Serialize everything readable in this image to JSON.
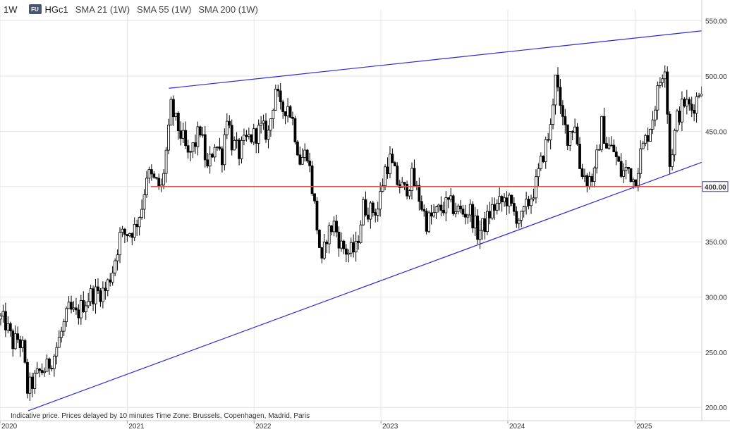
{
  "header": {
    "timeframe": "1W",
    "badge": "FU",
    "symbol": "HGc1",
    "indicators": [
      "SMA 21 (1W)",
      "SMA 55 (1W)",
      "SMA 200 (1W)"
    ]
  },
  "chart_data": {
    "type": "candlestick",
    "symbol": "HGc1",
    "interval": "1W",
    "y_ticks": [
      200,
      250,
      300,
      350,
      400,
      450,
      500,
      550
    ],
    "y_tick_labels": [
      "200.00",
      "250.00",
      "300.00",
      "350.00",
      "400.00",
      "450.00",
      "500.00",
      "550.00"
    ],
    "ylim": [
      188,
      560
    ],
    "x_start": "2020-01-01",
    "x_end": "2025-07-12",
    "x_ticks": [
      {
        "date": "2020-01-01",
        "label": "2020"
      },
      {
        "date": "2021-01-01",
        "label": "2021"
      },
      {
        "date": "2022-01-01",
        "label": "2022"
      },
      {
        "date": "2023-01-01",
        "label": "2023"
      },
      {
        "date": "2024-01-01",
        "label": "2024"
      },
      {
        "date": "2025-01-01",
        "label": "2025"
      }
    ],
    "price_path": [
      [
        "2020-01-03",
        280
      ],
      [
        "2020-01-17",
        276
      ],
      [
        "2020-02-07",
        258
      ],
      [
        "2020-02-21",
        262
      ],
      [
        "2020-03-06",
        254
      ],
      [
        "2020-03-20",
        216
      ],
      [
        "2020-04-03",
        222
      ],
      [
        "2020-04-24",
        232
      ],
      [
        "2020-05-15",
        236
      ],
      [
        "2020-06-05",
        248
      ],
      [
        "2020-06-26",
        268
      ],
      [
        "2020-07-17",
        288
      ],
      [
        "2020-08-07",
        283
      ],
      [
        "2020-08-28",
        294
      ],
      [
        "2020-09-18",
        302
      ],
      [
        "2020-10-09",
        304
      ],
      [
        "2020-10-30",
        306
      ],
      [
        "2020-11-20",
        325
      ],
      [
        "2020-12-11",
        355
      ],
      [
        "2020-12-31",
        358
      ],
      [
        "2021-01-22",
        362
      ],
      [
        "2021-02-12",
        382
      ],
      [
        "2021-02-26",
        412
      ],
      [
        "2021-03-19",
        405
      ],
      [
        "2021-04-09",
        398
      ],
      [
        "2021-04-30",
        448
      ],
      [
        "2021-05-07",
        472
      ],
      [
        "2021-05-21",
        458
      ],
      [
        "2021-06-11",
        442
      ],
      [
        "2021-06-25",
        426
      ],
      [
        "2021-07-16",
        440
      ],
      [
        "2021-07-30",
        452
      ],
      [
        "2021-08-20",
        415
      ],
      [
        "2021-09-10",
        440
      ],
      [
        "2021-10-01",
        428
      ],
      [
        "2021-10-15",
        466
      ],
      [
        "2021-10-29",
        440
      ],
      [
        "2021-11-19",
        430
      ],
      [
        "2021-12-10",
        442
      ],
      [
        "2021-12-31",
        446
      ],
      [
        "2022-01-21",
        452
      ],
      [
        "2022-02-11",
        448
      ],
      [
        "2022-03-04",
        490
      ],
      [
        "2022-03-18",
        468
      ],
      [
        "2022-04-08",
        474
      ],
      [
        "2022-04-22",
        460
      ],
      [
        "2022-05-13",
        424
      ],
      [
        "2022-06-03",
        432
      ],
      [
        "2022-06-24",
        382
      ],
      [
        "2022-07-15",
        328
      ],
      [
        "2022-07-29",
        356
      ],
      [
        "2022-08-19",
        366
      ],
      [
        "2022-09-09",
        346
      ],
      [
        "2022-09-30",
        340
      ],
      [
        "2022-10-21",
        343
      ],
      [
        "2022-11-11",
        382
      ],
      [
        "2022-12-02",
        378
      ],
      [
        "2022-12-23",
        380
      ],
      [
        "2023-01-13",
        416
      ],
      [
        "2023-01-27",
        424
      ],
      [
        "2023-02-17",
        404
      ],
      [
        "2023-03-10",
        396
      ],
      [
        "2023-03-31",
        408
      ],
      [
        "2023-04-21",
        390
      ],
      [
        "2023-05-12",
        368
      ],
      [
        "2023-06-02",
        374
      ],
      [
        "2023-06-23",
        380
      ],
      [
        "2023-07-14",
        384
      ],
      [
        "2023-08-04",
        380
      ],
      [
        "2023-08-25",
        376
      ],
      [
        "2023-09-15",
        378
      ],
      [
        "2023-10-06",
        358
      ],
      [
        "2023-10-27",
        366
      ],
      [
        "2023-11-17",
        380
      ],
      [
        "2023-12-08",
        384
      ],
      [
        "2023-12-29",
        389
      ],
      [
        "2024-01-19",
        376
      ],
      [
        "2024-02-09",
        370
      ],
      [
        "2024-03-01",
        386
      ],
      [
        "2024-03-22",
        402
      ],
      [
        "2024-04-12",
        430
      ],
      [
        "2024-05-03",
        452
      ],
      [
        "2024-05-17",
        506
      ],
      [
        "2024-05-31",
        466
      ],
      [
        "2024-06-21",
        446
      ],
      [
        "2024-07-12",
        458
      ],
      [
        "2024-07-26",
        418
      ],
      [
        "2024-08-16",
        406
      ],
      [
        "2024-09-06",
        410
      ],
      [
        "2024-09-27",
        456
      ],
      [
        "2024-10-11",
        438
      ],
      [
        "2024-11-01",
        432
      ],
      [
        "2024-11-22",
        412
      ],
      [
        "2024-12-13",
        416
      ],
      [
        "2024-12-31",
        404
      ],
      [
        "2025-01-17",
        430
      ],
      [
        "2025-02-07",
        448
      ],
      [
        "2025-02-21",
        464
      ],
      [
        "2025-03-14",
        496
      ],
      [
        "2025-03-28",
        512
      ],
      [
        "2025-04-04",
        470
      ],
      [
        "2025-04-11",
        420
      ],
      [
        "2025-05-02",
        462
      ],
      [
        "2025-05-23",
        476
      ],
      [
        "2025-06-13",
        470
      ],
      [
        "2025-06-27",
        480
      ],
      [
        "2025-07-11",
        492
      ]
    ],
    "trendlines": [
      {
        "name": "upper",
        "from": {
          "date": "2021-05-01",
          "price": 489
        },
        "to": {
          "date": "2025-07-12",
          "price": 541
        },
        "color": "#2b2bd6"
      },
      {
        "name": "lower",
        "from": {
          "date": "2020-03-22",
          "price": 197
        },
        "to": {
          "date": "2025-07-12",
          "price": 422
        },
        "color": "#2b2bd6"
      }
    ],
    "horizontal_line": {
      "price": 400,
      "label": "400.00",
      "start": "2021-03-10",
      "color": "#e05050"
    },
    "footnote": "Indicative price. Prices delayed by 10 minutes    Time Zone: Brussels, Copenhagen, Madrid, Paris",
    "colors": {
      "up": "#ffffff",
      "down": "#000000",
      "wick": "#000000",
      "grid": "#e6e6e6",
      "line": "#2b2bd6",
      "level": "#e05050"
    }
  }
}
